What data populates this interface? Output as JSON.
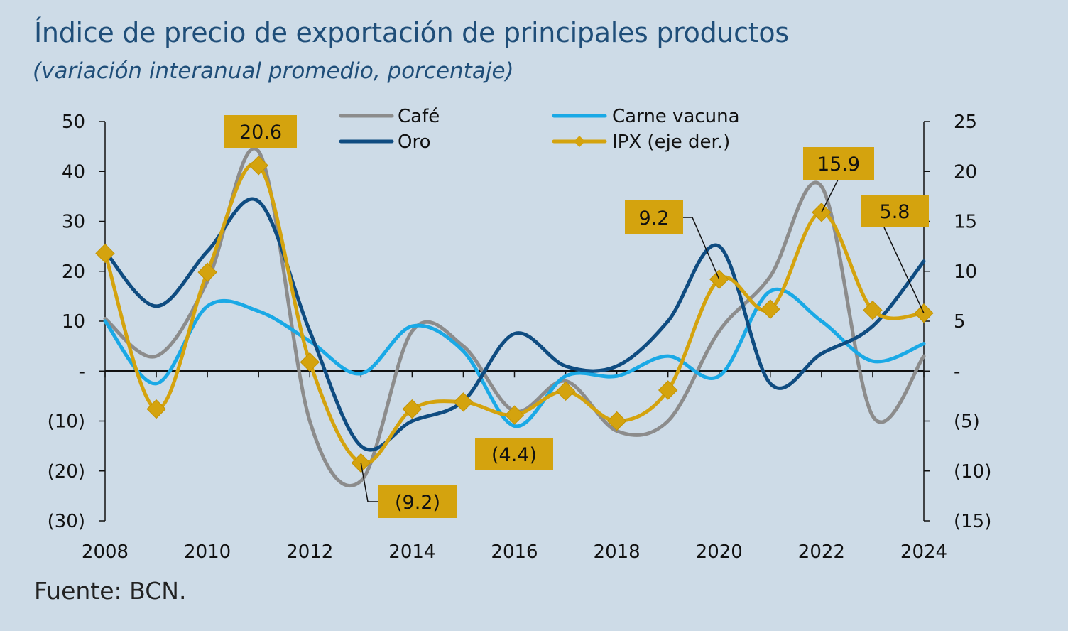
{
  "header": {
    "title": "Índice de precio de exportación de principales productos",
    "subtitle": "(variación interanual promedio, porcentaje)"
  },
  "footer": {
    "source": "Fuente: BCN."
  },
  "colors": {
    "cafe": "#8c8c8c",
    "oro": "#0f4c81",
    "carne": "#1aa9e6",
    "ipx": "#d4a30e",
    "callout_bg": "#d4a30e",
    "axis": "#111111"
  },
  "chart_data": {
    "type": "line",
    "x": [
      2008,
      2009,
      2010,
      2011,
      2012,
      2013,
      2014,
      2015,
      2016,
      2017,
      2018,
      2019,
      2020,
      2021,
      2022,
      2023,
      2024
    ],
    "x_ticks": [
      "2008",
      "2010",
      "2012",
      "2014",
      "2016",
      "2018",
      "2020",
      "2022",
      "2024"
    ],
    "y_left_ticks": [
      "50",
      "40",
      "30",
      "20",
      "10",
      "-",
      "(10)",
      "(20)",
      "(30)"
    ],
    "y_right_ticks": [
      "25",
      "20",
      "15",
      "10",
      "5",
      "-",
      "(5)",
      "(10)",
      "(15)"
    ],
    "ylim_left": [
      -30,
      50
    ],
    "ylim_right": [
      -15,
      25
    ],
    "legend": {
      "placement": "top-center",
      "entries": [
        "Café",
        "Carne vacuna",
        "Oro",
        "IPX (eje der.)"
      ]
    },
    "series": [
      {
        "name": "Café",
        "axis": "left",
        "values": [
          10.5,
          3,
          18,
          44,
          -10,
          -22,
          8,
          5,
          -8,
          -2,
          -12,
          -10,
          8,
          19,
          37,
          -9,
          3
        ]
      },
      {
        "name": "Carne vacuna",
        "axis": "left",
        "values": [
          10,
          -2.5,
          13,
          12,
          6,
          -0.5,
          9,
          4,
          -11,
          -1,
          -1,
          3,
          -1,
          16,
          10,
          2,
          5.5
        ]
      },
      {
        "name": "Oro",
        "axis": "left",
        "values": [
          24,
          13,
          24,
          34,
          8,
          -15,
          -10,
          -6,
          7.5,
          1,
          1,
          10,
          25,
          -2.5,
          3.5,
          9,
          22
        ]
      },
      {
        "name": "IPX (eje der.)",
        "axis": "right",
        "values": [
          11.8,
          -3.8,
          9.9,
          20.6,
          0.9,
          -9.2,
          -3.8,
          -3.1,
          -4.4,
          -2.0,
          -5.0,
          -1.9,
          9.2,
          6.2,
          15.9,
          6.1,
          5.8
        ]
      }
    ],
    "annotations": [
      {
        "label": "20.6",
        "year": 2011,
        "value": 20.6
      },
      {
        "label": "(9.2)",
        "year": 2013,
        "value": -9.2
      },
      {
        "label": "(4.4)",
        "year": 2016,
        "value": -4.4
      },
      {
        "label": "9.2",
        "year": 2020,
        "value": 9.2
      },
      {
        "label": "15.9",
        "year": 2022,
        "value": 15.9
      },
      {
        "label": "5.8",
        "year": 2024,
        "value": 5.8
      }
    ]
  }
}
